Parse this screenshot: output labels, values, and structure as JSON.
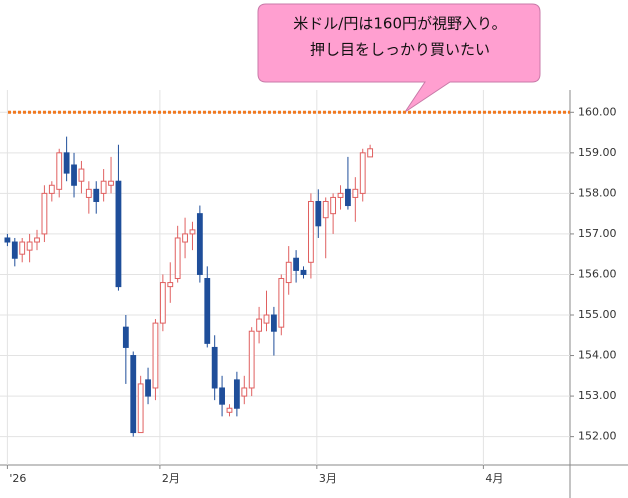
{
  "chart_data": {
    "type": "candlestick",
    "callout": [
      "米ドル/円は160円が視野入り。",
      "押し目をしっかり買いたい"
    ],
    "open": [
      156.9,
      156.8,
      156.5,
      156.6,
      156.8,
      157.0,
      158.0,
      158.1,
      159.0,
      158.7,
      158.3,
      157.9,
      158.1,
      158.0,
      158.2,
      158.3,
      154.7,
      154.0,
      152.1,
      153.4,
      153.2,
      154.8,
      155.7,
      155.9,
      156.8,
      157.0,
      157.5,
      155.9,
      154.2,
      153.2,
      152.6,
      153.4,
      153.0,
      153.2,
      154.6,
      154.8,
      155.0,
      154.7,
      155.8,
      156.4,
      156.1,
      156.3,
      157.8,
      157.4,
      157.5,
      157.9,
      158.1,
      157.9,
      158.0,
      158.9
    ],
    "high": [
      157.0,
      156.9,
      156.9,
      157.0,
      157.1,
      158.2,
      158.3,
      159.1,
      159.4,
      159.0,
      158.8,
      158.3,
      158.3,
      158.6,
      158.9,
      159.2,
      155.0,
      154.1,
      153.5,
      153.7,
      154.9,
      156.0,
      156.3,
      157.2,
      157.4,
      157.3,
      157.7,
      156.2,
      154.5,
      153.5,
      152.8,
      153.6,
      153.5,
      154.7,
      155.2,
      155.6,
      155.2,
      156.0,
      156.7,
      156.6,
      156.2,
      158.0,
      158.1,
      157.9,
      158.0,
      158.2,
      158.9,
      158.4,
      159.1,
      159.2
    ],
    "low": [
      156.7,
      156.2,
      156.3,
      156.3,
      156.6,
      156.8,
      157.8,
      157.9,
      158.3,
      157.9,
      158.0,
      157.5,
      157.5,
      157.8,
      158.0,
      155.6,
      153.3,
      152.0,
      152.1,
      152.8,
      152.9,
      154.6,
      155.3,
      155.8,
      156.4,
      156.6,
      155.8,
      154.2,
      152.9,
      152.5,
      152.5,
      152.5,
      152.8,
      153.0,
      154.3,
      154.6,
      154.0,
      154.5,
      155.5,
      155.8,
      155.9,
      155.9,
      156.9,
      156.4,
      157.0,
      157.6,
      157.6,
      157.3,
      157.8,
      158.9
    ],
    "close": [
      156.8,
      156.4,
      156.8,
      156.8,
      156.9,
      158.0,
      158.2,
      159.0,
      158.5,
      158.2,
      158.6,
      158.1,
      157.8,
      158.3,
      158.3,
      155.7,
      154.2,
      152.1,
      153.3,
      153.0,
      154.8,
      155.8,
      155.8,
      156.9,
      157.0,
      157.1,
      156.0,
      154.3,
      153.2,
      152.8,
      152.7,
      152.7,
      153.2,
      154.6,
      154.9,
      155.0,
      154.6,
      155.9,
      156.3,
      156.1,
      156.0,
      157.8,
      157.2,
      157.8,
      157.9,
      158.0,
      157.7,
      158.1,
      159.0,
      159.1
    ],
    "up_color": "#e06060",
    "down_color": "#1f4e9a",
    "hline": {
      "value": 160,
      "color": "#f07820"
    },
    "xlim": [
      -1,
      76
    ],
    "xticks": [
      {
        "value": 0,
        "label": "'26"
      },
      {
        "value": 20.6,
        "label": "2月"
      },
      {
        "value": 41.8,
        "label": "3月"
      },
      {
        "value": 64.3,
        "label": "4月"
      }
    ],
    "ylim": [
      151.3,
      160.55
    ],
    "yticks": [
      {
        "value": 152,
        "label": "152.00"
      },
      {
        "value": 153,
        "label": "153.00"
      },
      {
        "value": 154,
        "label": "154.00"
      },
      {
        "value": 155,
        "label": "155.00"
      },
      {
        "value": 156,
        "label": "156.00"
      },
      {
        "value": 157,
        "label": "157.00"
      },
      {
        "value": 158,
        "label": "158.00"
      },
      {
        "value": 159,
        "label": "159.00"
      },
      {
        "value": 160,
        "label": "160.00"
      }
    ],
    "grid": true
  }
}
